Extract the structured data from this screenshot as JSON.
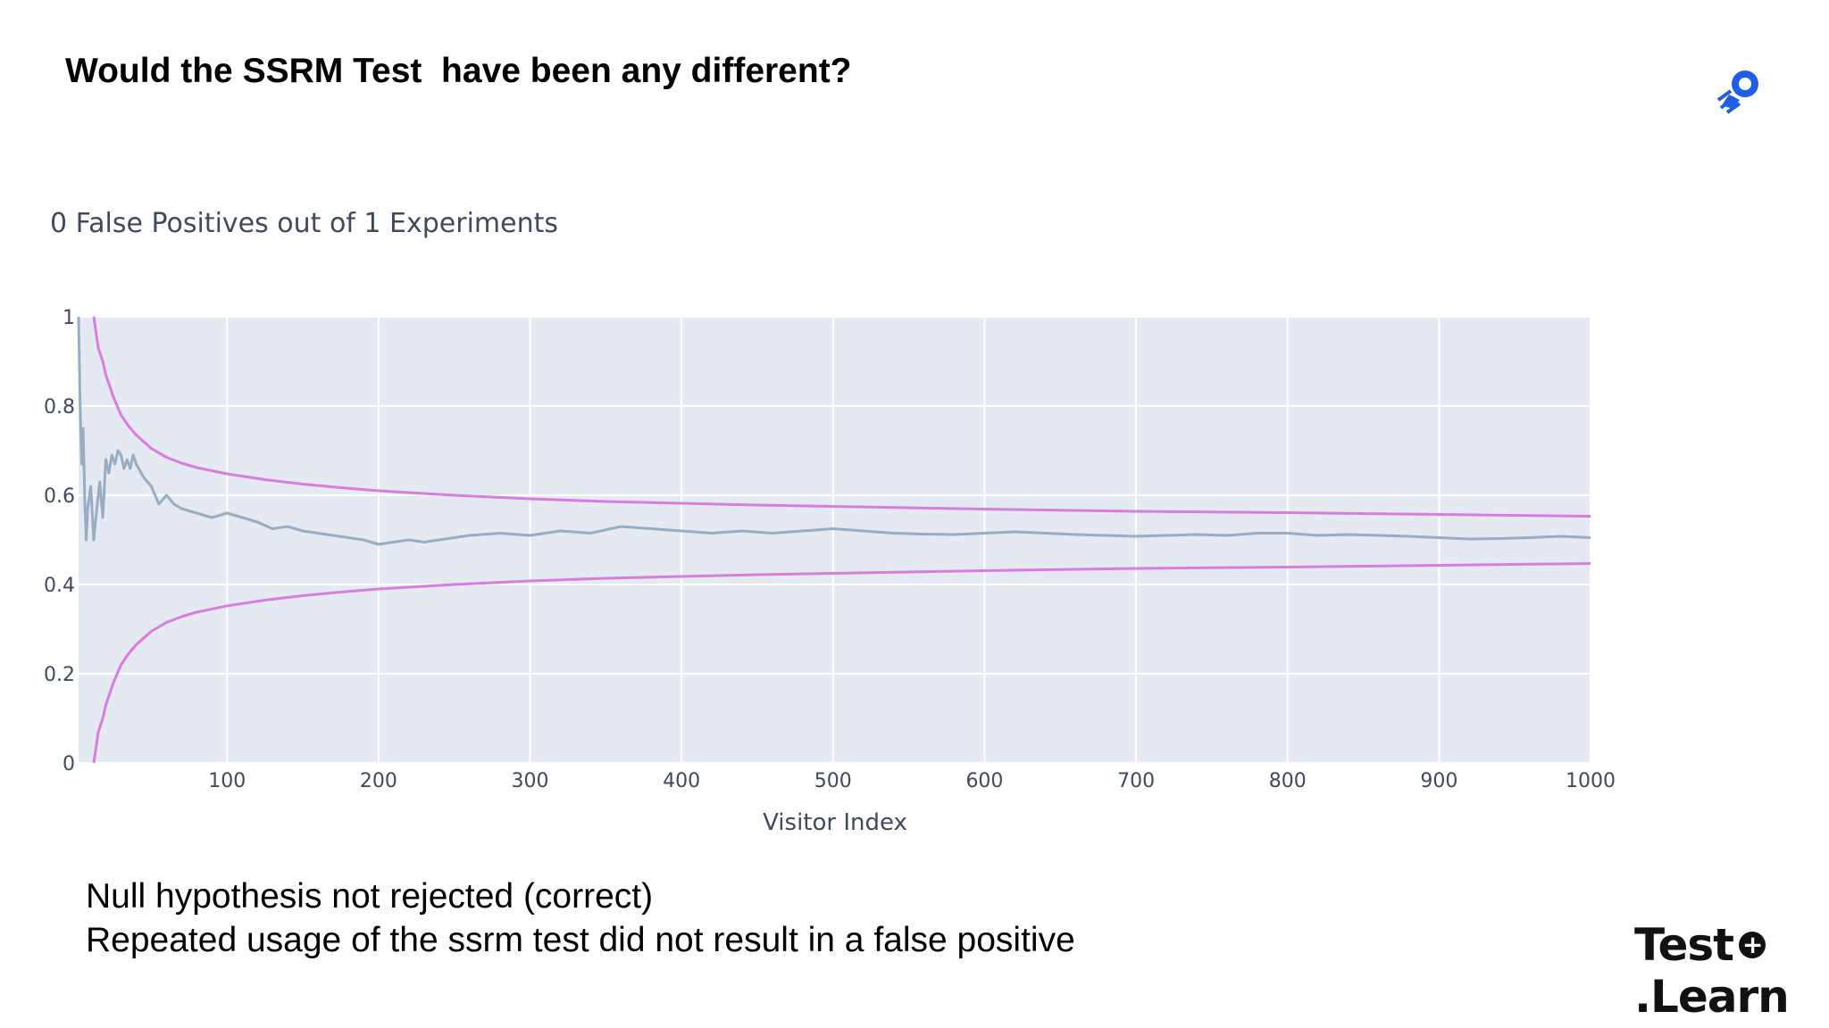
{
  "slide": {
    "title": "Would the SSRM Test  have been any different?",
    "notes": [
      "Null hypothesis not rejected (correct)",
      "Repeated usage of the ssrm test did not result in a false positive"
    ],
    "brand": {
      "line1": "Test",
      "line2": ".Learn",
      "symbol": "+"
    }
  },
  "icons": {
    "top_right": "rocket-logo-icon"
  },
  "colors": {
    "plot_bg": "#e5e9f2",
    "grid": "#ffffff",
    "bounds": "#da7bdf",
    "estimate": "#97adc3",
    "logo": "#1f5fe8"
  },
  "chart_data": {
    "type": "line",
    "title": "0 False Positives out of 1 Experiments",
    "xlabel": "Visitor Index",
    "ylabel": "",
    "xlim": [
      2,
      1000
    ],
    "ylim": [
      0,
      1
    ],
    "xticks": [
      100,
      200,
      300,
      400,
      500,
      600,
      700,
      800,
      900,
      1000
    ],
    "yticks": [
      0,
      0.2,
      0.4,
      0.6,
      0.8,
      1
    ],
    "grid": true,
    "legend": "none",
    "series": [
      {
        "role": "upper-bound",
        "x": [
          12,
          15,
          18,
          20,
          25,
          30,
          35,
          40,
          50,
          60,
          70,
          80,
          90,
          100,
          125,
          150,
          175,
          200,
          250,
          300,
          350,
          400,
          450,
          500,
          600,
          700,
          800,
          900,
          1000
        ],
        "y": [
          1.0,
          0.93,
          0.9,
          0.87,
          0.82,
          0.78,
          0.755,
          0.735,
          0.705,
          0.685,
          0.672,
          0.662,
          0.655,
          0.648,
          0.635,
          0.625,
          0.617,
          0.61,
          0.6,
          0.592,
          0.586,
          0.582,
          0.578,
          0.575,
          0.569,
          0.564,
          0.561,
          0.557,
          0.553
        ]
      },
      {
        "role": "lower-bound",
        "x": [
          12,
          15,
          18,
          20,
          25,
          30,
          35,
          40,
          50,
          60,
          70,
          80,
          90,
          100,
          125,
          150,
          175,
          200,
          250,
          300,
          350,
          400,
          450,
          500,
          600,
          700,
          800,
          900,
          1000
        ],
        "y": [
          0.0,
          0.07,
          0.1,
          0.13,
          0.18,
          0.22,
          0.245,
          0.265,
          0.295,
          0.315,
          0.328,
          0.338,
          0.345,
          0.352,
          0.365,
          0.375,
          0.383,
          0.39,
          0.4,
          0.408,
          0.414,
          0.418,
          0.422,
          0.425,
          0.431,
          0.436,
          0.439,
          0.443,
          0.447
        ]
      },
      {
        "role": "estimate",
        "x": [
          2,
          3,
          4,
          5,
          6,
          7,
          8,
          10,
          12,
          14,
          16,
          18,
          20,
          22,
          24,
          26,
          28,
          30,
          32,
          34,
          36,
          38,
          40,
          45,
          50,
          55,
          60,
          65,
          70,
          80,
          90,
          100,
          110,
          120,
          130,
          140,
          150,
          160,
          170,
          180,
          190,
          200,
          210,
          220,
          230,
          240,
          250,
          260,
          280,
          300,
          320,
          340,
          360,
          380,
          400,
          420,
          440,
          460,
          480,
          500,
          520,
          540,
          560,
          580,
          600,
          620,
          640,
          660,
          680,
          700,
          720,
          740,
          760,
          780,
          800,
          820,
          840,
          860,
          880,
          900,
          920,
          940,
          960,
          980,
          1000
        ],
        "y": [
          1.0,
          0.8,
          0.67,
          0.75,
          0.6,
          0.5,
          0.57,
          0.62,
          0.5,
          0.57,
          0.63,
          0.55,
          0.68,
          0.65,
          0.69,
          0.67,
          0.7,
          0.69,
          0.66,
          0.68,
          0.66,
          0.69,
          0.67,
          0.64,
          0.62,
          0.58,
          0.6,
          0.58,
          0.57,
          0.56,
          0.55,
          0.56,
          0.55,
          0.54,
          0.525,
          0.53,
          0.52,
          0.515,
          0.51,
          0.505,
          0.5,
          0.49,
          0.495,
          0.5,
          0.495,
          0.5,
          0.505,
          0.51,
          0.515,
          0.51,
          0.52,
          0.515,
          0.53,
          0.525,
          0.52,
          0.515,
          0.52,
          0.515,
          0.52,
          0.525,
          0.52,
          0.515,
          0.513,
          0.512,
          0.515,
          0.518,
          0.515,
          0.512,
          0.51,
          0.508,
          0.51,
          0.512,
          0.51,
          0.515,
          0.515,
          0.51,
          0.512,
          0.51,
          0.508,
          0.505,
          0.502,
          0.503,
          0.505,
          0.508,
          0.505
        ]
      }
    ]
  }
}
